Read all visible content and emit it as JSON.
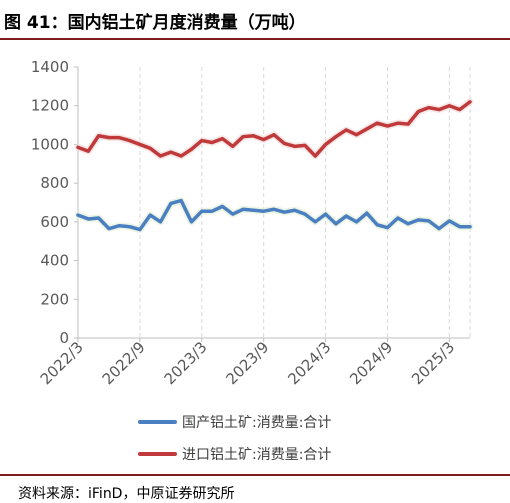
{
  "header": {
    "title": "图 41：国内铝土矿月度消费量（万吨）"
  },
  "footer": {
    "source": "资料来源：iFinD，中原证券研究所"
  },
  "colors": {
    "domestic": "#4a7fc1",
    "import": "#c0393b",
    "grid": "#d9d9d9",
    "axis": "#bfbfbf",
    "rule": "#7f1d1d"
  },
  "chart_data": {
    "type": "line",
    "ylim": [
      0,
      1400
    ],
    "yticks": [
      0,
      200,
      400,
      600,
      800,
      1000,
      1200,
      1400
    ],
    "xtick_labels": [
      "2022/3",
      "2022/9",
      "2023/3",
      "2023/9",
      "2024/3",
      "2024/9",
      "2025/3"
    ],
    "xtick_indices": [
      0,
      6,
      12,
      18,
      24,
      30,
      36
    ],
    "x": [
      "2022/3",
      "2022/4",
      "2022/5",
      "2022/6",
      "2022/7",
      "2022/8",
      "2022/9",
      "2022/10",
      "2022/11",
      "2022/12",
      "2023/1",
      "2023/2",
      "2023/3",
      "2023/4",
      "2023/5",
      "2023/6",
      "2023/7",
      "2023/8",
      "2023/9",
      "2023/10",
      "2023/11",
      "2023/12",
      "2024/1",
      "2024/2",
      "2024/3",
      "2024/4",
      "2024/5",
      "2024/6",
      "2024/7",
      "2024/8",
      "2024/9",
      "2024/10",
      "2024/11",
      "2024/12",
      "2025/1",
      "2025/2",
      "2025/3",
      "2025/4",
      "2025/5"
    ],
    "series": [
      {
        "name": "国产铝土矿:消费量:合计",
        "values": [
          635,
          615,
          620,
          565,
          580,
          575,
          560,
          635,
          600,
          695,
          710,
          600,
          655,
          655,
          680,
          640,
          665,
          660,
          655,
          665,
          650,
          660,
          640,
          600,
          640,
          590,
          630,
          600,
          645,
          585,
          570,
          620,
          590,
          610,
          605,
          565,
          605,
          575,
          575
        ]
      },
      {
        "name": "进口铝土矿:消费量:合计",
        "values": [
          985,
          965,
          1045,
          1035,
          1035,
          1020,
          1000,
          980,
          940,
          960,
          940,
          975,
          1020,
          1010,
          1030,
          990,
          1040,
          1045,
          1025,
          1050,
          1005,
          990,
          995,
          940,
          1000,
          1040,
          1075,
          1050,
          1080,
          1110,
          1095,
          1110,
          1105,
          1170,
          1190,
          1180,
          1200,
          1180,
          1220
        ]
      }
    ],
    "legend_position": "bottom",
    "grid": "vertical"
  }
}
